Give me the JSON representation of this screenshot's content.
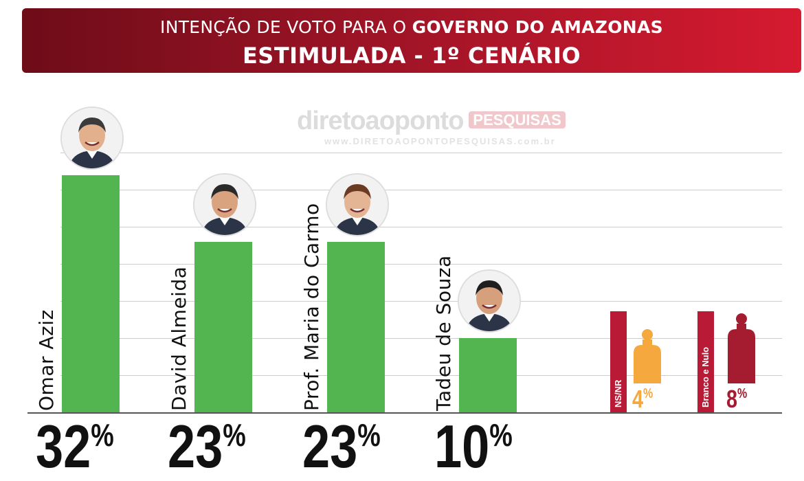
{
  "header": {
    "line1_regular": "INTENÇÃO DE VOTO PARA O ",
    "line1_bold": "GOVERNO DO AMAZONAS",
    "line2": "ESTIMULADA - 1º CENÁRIO"
  },
  "watermark": {
    "brand": "diretoaoponto",
    "badge": "PESQUISAS",
    "url": "www.DIRETOAOPONTOPESQUISAS.com.br"
  },
  "colors": {
    "bar": "#53b54f",
    "ns_nr": "#f4a83d",
    "branco_nulo": "#a51c30",
    "banner_dark": "#6e0c18",
    "banner_light": "#d61a30"
  },
  "chart_data": {
    "type": "bar",
    "categories": [
      "Omar Aziz",
      "David Almeida",
      "Prof. Maria do Carmo",
      "Tadeu de Souza",
      "NS/NR",
      "Branco e Nulo"
    ],
    "values": [
      32,
      23,
      23,
      10,
      4,
      8
    ],
    "value_labels": [
      "32",
      "23",
      "23",
      "10",
      "4",
      "8"
    ],
    "unit": "%",
    "title": "INTENÇÃO DE VOTO PARA O GOVERNO DO AMAZONAS",
    "subtitle": "ESTIMULADA - 1º CENÁRIO",
    "ylim": [
      0,
      36
    ],
    "grid": true
  }
}
